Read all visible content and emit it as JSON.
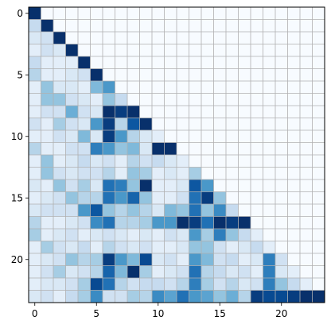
{
  "chart_data": {
    "type": "heatmap",
    "colormap": "Blues",
    "value_range": [
      0,
      1
    ],
    "grid": true,
    "grid_color": "#b0b0b0",
    "x_ticks": [
      0,
      5,
      10,
      15,
      20
    ],
    "y_ticks": [
      0,
      5,
      10,
      15,
      20
    ],
    "xlim": [
      -0.5,
      23.5
    ],
    "ylim": [
      23.5,
      -0.5
    ],
    "rows": 24,
    "cols": 24,
    "matrix": [
      [
        1.0,
        0.0,
        0.0,
        0.0,
        0.0,
        0.0,
        0.0,
        0.0,
        0.0,
        0.0,
        0.0,
        0.0,
        0.0,
        0.0,
        0.0,
        0.0,
        0.0,
        0.0,
        0.0,
        0.0,
        0.0,
        0.0,
        0.0,
        0.0
      ],
      [
        0.25,
        1.0,
        0.0,
        0.0,
        0.0,
        0.0,
        0.0,
        0.0,
        0.0,
        0.0,
        0.0,
        0.0,
        0.0,
        0.0,
        0.0,
        0.0,
        0.0,
        0.0,
        0.0,
        0.0,
        0.0,
        0.0,
        0.0,
        0.0
      ],
      [
        0.15,
        0.2,
        1.0,
        0.0,
        0.0,
        0.0,
        0.0,
        0.0,
        0.0,
        0.0,
        0.0,
        0.0,
        0.0,
        0.0,
        0.0,
        0.0,
        0.0,
        0.0,
        0.0,
        0.0,
        0.0,
        0.0,
        0.0,
        0.0
      ],
      [
        0.1,
        0.2,
        0.15,
        1.0,
        0.0,
        0.0,
        0.0,
        0.0,
        0.0,
        0.0,
        0.0,
        0.0,
        0.0,
        0.0,
        0.0,
        0.0,
        0.0,
        0.0,
        0.0,
        0.0,
        0.0,
        0.0,
        0.0,
        0.0
      ],
      [
        0.25,
        0.1,
        0.1,
        0.1,
        1.0,
        0.0,
        0.0,
        0.0,
        0.0,
        0.0,
        0.0,
        0.0,
        0.0,
        0.0,
        0.0,
        0.0,
        0.0,
        0.0,
        0.0,
        0.0,
        0.0,
        0.0,
        0.0,
        0.0
      ],
      [
        0.3,
        0.1,
        0.1,
        0.15,
        0.2,
        1.0,
        0.0,
        0.0,
        0.0,
        0.0,
        0.0,
        0.0,
        0.0,
        0.0,
        0.0,
        0.0,
        0.0,
        0.0,
        0.0,
        0.0,
        0.0,
        0.0,
        0.0,
        0.0
      ],
      [
        0.1,
        0.4,
        0.15,
        0.15,
        0.1,
        0.45,
        0.6,
        0.0,
        0.0,
        0.0,
        0.0,
        0.0,
        0.0,
        0.0,
        0.0,
        0.0,
        0.0,
        0.0,
        0.0,
        0.0,
        0.0,
        0.0,
        0.0,
        0.0
      ],
      [
        0.1,
        0.4,
        0.4,
        0.2,
        0.15,
        0.1,
        0.4,
        0.25,
        0.0,
        0.0,
        0.0,
        0.0,
        0.0,
        0.0,
        0.0,
        0.0,
        0.0,
        0.0,
        0.0,
        0.0,
        0.0,
        0.0,
        0.0,
        0.0
      ],
      [
        0.1,
        0.2,
        0.2,
        0.5,
        0.2,
        0.15,
        1.0,
        0.95,
        1.0,
        0.0,
        0.0,
        0.0,
        0.0,
        0.0,
        0.0,
        0.0,
        0.0,
        0.0,
        0.0,
        0.0,
        0.0,
        0.0,
        0.0,
        0.0
      ],
      [
        0.2,
        0.1,
        0.35,
        0.2,
        0.15,
        0.6,
        0.95,
        0.3,
        0.85,
        1.0,
        0.0,
        0.0,
        0.0,
        0.0,
        0.0,
        0.0,
        0.0,
        0.0,
        0.0,
        0.0,
        0.0,
        0.0,
        0.0,
        0.0
      ],
      [
        0.1,
        0.1,
        0.2,
        0.15,
        0.45,
        0.15,
        0.95,
        0.6,
        0.3,
        0.15,
        0.1,
        0.0,
        0.0,
        0.0,
        0.0,
        0.0,
        0.0,
        0.0,
        0.0,
        0.0,
        0.0,
        0.0,
        0.0,
        0.0
      ],
      [
        0.3,
        0.1,
        0.1,
        0.2,
        0.2,
        0.7,
        0.6,
        0.4,
        0.45,
        0.15,
        1.0,
        1.0,
        0.0,
        0.0,
        0.0,
        0.0,
        0.0,
        0.0,
        0.0,
        0.0,
        0.0,
        0.0,
        0.0,
        0.0
      ],
      [
        0.1,
        0.4,
        0.1,
        0.15,
        0.25,
        0.15,
        0.2,
        0.1,
        0.3,
        0.2,
        0.25,
        0.15,
        0.1,
        0.0,
        0.0,
        0.0,
        0.0,
        0.0,
        0.0,
        0.0,
        0.0,
        0.0,
        0.0,
        0.0
      ],
      [
        0.1,
        0.4,
        0.2,
        0.15,
        0.2,
        0.2,
        0.3,
        0.1,
        0.4,
        0.35,
        0.1,
        0.15,
        0.1,
        0.35,
        0.0,
        0.0,
        0.0,
        0.0,
        0.0,
        0.0,
        0.0,
        0.0,
        0.0,
        0.0
      ],
      [
        0.15,
        0.1,
        0.4,
        0.2,
        0.35,
        0.15,
        0.75,
        0.7,
        0.4,
        1.0,
        0.1,
        0.1,
        0.15,
        0.85,
        0.6,
        0.0,
        0.0,
        0.0,
        0.0,
        0.0,
        0.0,
        0.0,
        0.0,
        0.0
      ],
      [
        0.1,
        0.15,
        0.2,
        0.4,
        0.3,
        0.3,
        0.75,
        0.6,
        0.8,
        0.4,
        0.1,
        0.1,
        0.2,
        0.75,
        0.95,
        0.4,
        0.0,
        0.0,
        0.0,
        0.0,
        0.0,
        0.0,
        0.0,
        0.0
      ],
      [
        0.15,
        0.2,
        0.2,
        0.2,
        0.6,
        0.85,
        0.4,
        0.3,
        0.4,
        0.3,
        0.15,
        0.45,
        0.4,
        0.75,
        0.4,
        0.65,
        0.25,
        0.0,
        0.0,
        0.0,
        0.0,
        0.0,
        0.0,
        0.0
      ],
      [
        0.3,
        0.1,
        0.1,
        0.15,
        0.2,
        0.65,
        0.75,
        0.3,
        0.3,
        0.35,
        0.6,
        0.6,
        1.0,
        0.95,
        0.75,
        1.0,
        0.95,
        1.0,
        0.0,
        0.0,
        0.0,
        0.0,
        0.0,
        0.0
      ],
      [
        0.35,
        0.1,
        0.15,
        0.2,
        0.1,
        0.15,
        0.2,
        0.15,
        0.1,
        0.15,
        0.1,
        0.2,
        0.15,
        0.6,
        0.35,
        0.7,
        0.4,
        0.25,
        0.1,
        0.0,
        0.0,
        0.0,
        0.0,
        0.0
      ],
      [
        0.1,
        0.35,
        0.2,
        0.15,
        0.25,
        0.1,
        0.3,
        0.2,
        0.15,
        0.2,
        0.1,
        0.1,
        0.15,
        0.4,
        0.4,
        0.2,
        0.1,
        0.15,
        0.25,
        0.1,
        0.0,
        0.0,
        0.0,
        0.0
      ],
      [
        0.1,
        0.15,
        0.2,
        0.4,
        0.3,
        0.35,
        0.95,
        0.6,
        0.45,
        0.9,
        0.15,
        0.2,
        0.1,
        0.6,
        0.45,
        0.2,
        0.25,
        0.1,
        0.15,
        0.7,
        0.2,
        0.0,
        0.0,
        0.0
      ],
      [
        0.1,
        0.2,
        0.35,
        0.15,
        0.2,
        0.3,
        0.8,
        0.45,
        1.0,
        0.35,
        0.1,
        0.15,
        0.2,
        0.75,
        0.3,
        0.25,
        0.15,
        0.2,
        0.1,
        0.7,
        0.15,
        0.1,
        0.0,
        0.0
      ],
      [
        0.1,
        0.15,
        0.15,
        0.2,
        0.35,
        0.9,
        0.75,
        0.3,
        0.2,
        0.25,
        0.25,
        0.2,
        0.3,
        0.7,
        0.35,
        0.2,
        0.3,
        0.15,
        0.2,
        0.7,
        0.4,
        0.25,
        0.1,
        0.0
      ],
      [
        0.15,
        0.2,
        0.1,
        0.25,
        0.35,
        0.65,
        0.2,
        0.2,
        0.35,
        0.3,
        0.65,
        0.55,
        0.75,
        0.6,
        0.55,
        0.4,
        0.5,
        0.3,
        0.95,
        0.9,
        0.9,
        0.95,
        1.0,
        1.0
      ]
    ]
  }
}
